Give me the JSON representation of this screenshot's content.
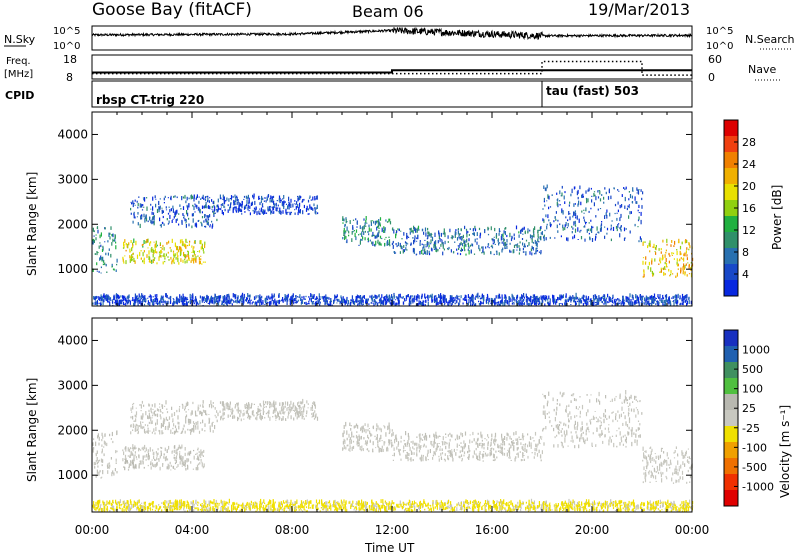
{
  "header": {
    "station": "Goose Bay (fitACF)",
    "beam": "Beam 06",
    "date": "19/Mar/2013"
  },
  "noise_panel": {
    "left_label": "N.Sky",
    "right_label": "N.Search",
    "left_ticks": [
      "10^5",
      "10^0"
    ],
    "right_ticks": [
      "10^5",
      "10^0"
    ]
  },
  "freq_panel": {
    "left_label_1": "Freq.",
    "left_label_2": "[MHz]",
    "left_ticks": [
      "18",
      "8"
    ],
    "right_label": "Nave",
    "right_ticks": [
      "60",
      "0"
    ]
  },
  "cpid_panel": {
    "label": "CPID",
    "modes": [
      {
        "name": "rbsp CT-trig 220",
        "start_hour": 0,
        "end_hour": 18
      },
      {
        "name": "tau (fast) 503",
        "start_hour": 18,
        "end_hour": 24
      }
    ]
  },
  "power_panel": {
    "ylabel": "Slant Range [km]",
    "colorbar_label": "Power [dB]",
    "colorbar_ticks": [
      "28",
      "24",
      "20",
      "16",
      "12",
      "8",
      "4"
    ],
    "colorbar_colors": [
      "#dd0000",
      "#f04010",
      "#f08000",
      "#f0b000",
      "#e8e000",
      "#90d010",
      "#20b040",
      "#30906a",
      "#2870b0",
      "#1848c8",
      "#0828e0"
    ]
  },
  "velocity_panel": {
    "ylabel": "Slant Range [km]",
    "colorbar_label": "Velocity [m s⁻¹]",
    "colorbar_ticks": [
      "1000",
      "500",
      "100",
      "25",
      "-25",
      "-100",
      "-500",
      "-1000"
    ],
    "colorbar_colors": [
      "#1830c0",
      "#2060b0",
      "#409060",
      "#50c040",
      "#b8b8b0",
      "#c8c8c0",
      "#f0e000",
      "#f0a000",
      "#f07000",
      "#f03000",
      "#e00000"
    ]
  },
  "x_axis": {
    "label": "Time UT",
    "tick_labels": [
      "00:00",
      "04:00",
      "08:00",
      "12:00",
      "16:00",
      "20:00",
      "00:00"
    ]
  },
  "chart_data": {
    "type": "heatmap",
    "x_unit": "hours UT",
    "x_range": [
      0,
      24
    ],
    "y_range": [
      180,
      4500
    ],
    "y_ticks": [
      1000,
      2000,
      3000,
      4000
    ],
    "noise": {
      "sky_log10_range": [
        0,
        5
      ],
      "sky_level_log10": [
        [
          0,
          3.2
        ],
        [
          4,
          3.3
        ],
        [
          8,
          3.4
        ],
        [
          12,
          4.2
        ],
        [
          18,
          3.0
        ],
        [
          24,
          3.1
        ]
      ]
    },
    "frequency_mhz": [
      [
        0,
        10.5
      ],
      [
        12,
        11.5
      ],
      [
        18,
        11.5
      ],
      [
        24,
        11.5
      ]
    ],
    "nave": [
      [
        0,
        12
      ],
      [
        18,
        45
      ],
      [
        22,
        8
      ],
      [
        24,
        8
      ]
    ],
    "power_regions": [
      {
        "t": [
          0.0,
          1.0
        ],
        "r": [
          900,
          1900
        ],
        "level_db": 10
      },
      {
        "t": [
          1.2,
          4.5
        ],
        "r": [
          1100,
          1600
        ],
        "level_db": 20
      },
      {
        "t": [
          1.5,
          5.0
        ],
        "r": [
          1900,
          2600
        ],
        "level_db": 6
      },
      {
        "t": [
          5.0,
          9.0
        ],
        "r": [
          2200,
          2600
        ],
        "level_db": 4
      },
      {
        "t": [
          10.0,
          12.0
        ],
        "r": [
          1500,
          2100
        ],
        "level_db": 10
      },
      {
        "t": [
          12.0,
          18.0
        ],
        "r": [
          1300,
          1900
        ],
        "level_db": 8
      },
      {
        "t": [
          18.0,
          22.0
        ],
        "r": [
          1600,
          2800
        ],
        "level_db": 6
      },
      {
        "t": [
          22.0,
          24.0
        ],
        "r": [
          800,
          1600
        ],
        "level_db": 22
      },
      {
        "t": [
          0.0,
          24.0
        ],
        "r": [
          180,
          380
        ],
        "level_db": 4
      }
    ],
    "velocity_regions": [
      {
        "t": [
          0.0,
          1.0
        ],
        "r": [
          900,
          1900
        ],
        "v": 0
      },
      {
        "t": [
          1.2,
          4.5
        ],
        "r": [
          1100,
          1600
        ],
        "v": 100
      },
      {
        "t": [
          1.5,
          5.0
        ],
        "r": [
          1900,
          2600
        ],
        "v": 0
      },
      {
        "t": [
          5.0,
          9.0
        ],
        "r": [
          2200,
          2600
        ],
        "v": 0
      },
      {
        "t": [
          10.0,
          12.0
        ],
        "r": [
          1500,
          2100
        ],
        "v": 0
      },
      {
        "t": [
          12.0,
          18.0
        ],
        "r": [
          1300,
          1900
        ],
        "v": 0
      },
      {
        "t": [
          18.0,
          22.0
        ],
        "r": [
          1600,
          2800
        ],
        "v": 0
      },
      {
        "t": [
          22.0,
          24.0
        ],
        "r": [
          800,
          1600
        ],
        "v": 60
      },
      {
        "t": [
          0.0,
          24.0
        ],
        "r": [
          180,
          380
        ],
        "v": -150
      }
    ]
  }
}
